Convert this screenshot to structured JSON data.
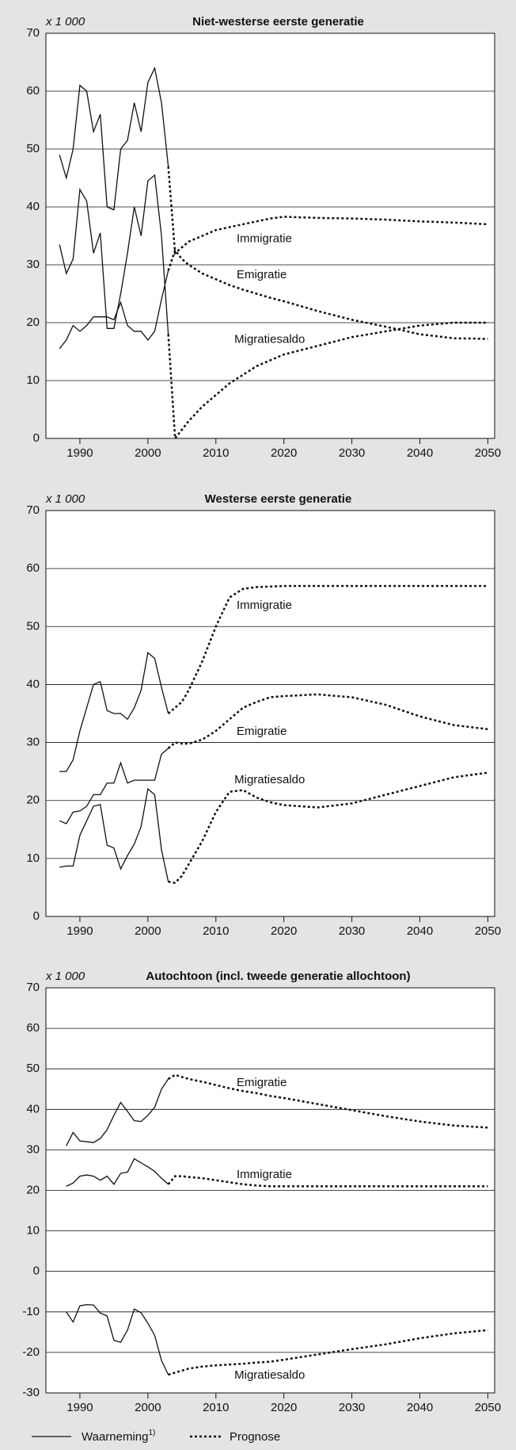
{
  "chart_data": [
    {
      "type": "line",
      "title": "Niet-westerse eerste generatie",
      "unit": "x 1 000",
      "xlim": [
        1985,
        2051
      ],
      "xticks": [
        1990,
        2000,
        2010,
        2020,
        2030,
        2040,
        2050
      ],
      "ylim": [
        0,
        70
      ],
      "yticks": [
        0,
        10,
        20,
        30,
        40,
        50,
        60,
        70
      ],
      "grid": true,
      "x_observed": [
        1987,
        1988,
        1989,
        1990,
        1991,
        1992,
        1993,
        1994,
        1995,
        1996,
        1997,
        1998,
        1999,
        2000,
        2001,
        2002,
        2003
      ],
      "x_forecast": [
        2003,
        2004,
        2005,
        2006,
        2008,
        2010,
        2012,
        2014,
        2016,
        2018,
        2020,
        2025,
        2030,
        2035,
        2040,
        2045,
        2050
      ],
      "series": [
        {
          "name": "Immigratie",
          "observed": [
            49,
            45,
            50,
            61,
            60,
            53,
            56,
            40,
            39.5,
            50,
            51.5,
            58,
            53,
            61.5,
            64,
            58,
            47
          ],
          "forecast": [
            47,
            32,
            33,
            34,
            35,
            36,
            36.5,
            37,
            37.5,
            38,
            38.3,
            38.1,
            38,
            37.8,
            37.5,
            37.3,
            37
          ]
        },
        {
          "name": "Emigratie",
          "observed": [
            15.5,
            17,
            19.5,
            18.5,
            19.5,
            21,
            21,
            21,
            20.5,
            23.5,
            19.5,
            18.5,
            18.5,
            17,
            18.5,
            24,
            29
          ],
          "forecast": [
            29,
            32.5,
            31,
            30,
            28.5,
            27.5,
            26.5,
            25.7,
            25,
            24.3,
            23.7,
            22,
            20.5,
            19.3,
            18,
            17.3,
            17.2
          ]
        },
        {
          "name": "Migratiesaldo",
          "observed": [
            33.5,
            28.5,
            31,
            43,
            41,
            32,
            35.5,
            19,
            19,
            25,
            32,
            40,
            35,
            44.5,
            45.5,
            35,
            18
          ],
          "forecast": [
            18,
            0,
            1.5,
            3,
            5.5,
            7.5,
            9.5,
            11,
            12.5,
            13.5,
            14.5,
            16,
            17.5,
            18.5,
            19.5,
            20,
            20
          ]
        }
      ]
    },
    {
      "type": "line",
      "title": "Westerse eerste generatie",
      "unit": "x 1 000",
      "xlim": [
        1985,
        2051
      ],
      "xticks": [
        1990,
        2000,
        2010,
        2020,
        2030,
        2040,
        2050
      ],
      "ylim": [
        0,
        70
      ],
      "yticks": [
        0,
        10,
        20,
        30,
        40,
        50,
        60,
        70
      ],
      "grid": true,
      "x_observed": [
        1987,
        1988,
        1989,
        1990,
        1991,
        1992,
        1993,
        1994,
        1995,
        1996,
        1997,
        1998,
        1999,
        2000,
        2001,
        2002,
        2003
      ],
      "x_forecast": [
        2003,
        2004,
        2005,
        2006,
        2008,
        2010,
        2012,
        2014,
        2016,
        2018,
        2020,
        2025,
        2030,
        2035,
        2040,
        2045,
        2050
      ],
      "series": [
        {
          "name": "Immigratie",
          "observed": [
            25,
            25,
            27,
            32,
            36,
            40,
            40.5,
            35.5,
            35,
            35,
            34,
            36,
            39,
            45.5,
            44.5,
            39.5,
            35
          ],
          "forecast": [
            35,
            36,
            37,
            39,
            44,
            50,
            55,
            56.5,
            56.8,
            56.9,
            57,
            57,
            57,
            57,
            57,
            57,
            57
          ]
        },
        {
          "name": "Emigratie",
          "observed": [
            16.5,
            16,
            18,
            18.2,
            19,
            21,
            21,
            23,
            23,
            26.5,
            23,
            23.5,
            23.5,
            23.5,
            23.5,
            28,
            29
          ],
          "forecast": [
            29,
            30,
            29.8,
            29.8,
            30.5,
            32,
            34,
            36,
            37,
            37.8,
            38,
            38.3,
            37.8,
            36.5,
            34.5,
            33,
            32.3
          ]
        },
        {
          "name": "Migratiesaldo",
          "observed": [
            8.5,
            8.7,
            8.7,
            14,
            16.5,
            19,
            19.3,
            12.3,
            11.8,
            8.2,
            10.5,
            12.5,
            15.5,
            22,
            21,
            11.5,
            6
          ],
          "forecast": [
            6,
            5.8,
            7,
            9,
            13,
            18,
            21.5,
            21.8,
            20.5,
            19.7,
            19.2,
            18.8,
            19.5,
            21,
            22.5,
            24,
            24.8
          ]
        }
      ]
    },
    {
      "type": "line",
      "title": "Autochtoon (incl. tweede generatie allochtoon)",
      "unit": "x 1 000",
      "xlim": [
        1985,
        2051
      ],
      "xticks": [
        1990,
        2000,
        2010,
        2020,
        2030,
        2040,
        2050
      ],
      "ylim": [
        -30,
        70
      ],
      "yticks": [
        -30,
        -20,
        -10,
        0,
        10,
        20,
        30,
        40,
        50,
        60,
        70
      ],
      "grid": true,
      "x_observed": [
        1988,
        1989,
        1990,
        1991,
        1992,
        1993,
        1994,
        1995,
        1996,
        1997,
        1998,
        1999,
        2000,
        2001,
        2002,
        2003
      ],
      "x_forecast": [
        2003,
        2004,
        2005,
        2006,
        2008,
        2010,
        2012,
        2014,
        2016,
        2018,
        2020,
        2025,
        2030,
        2035,
        2040,
        2045,
        2050
      ],
      "series": [
        {
          "name": "Emigratie",
          "observed": [
            31,
            34.3,
            32.2,
            32,
            31.8,
            32.8,
            35,
            38.5,
            41.7,
            39.5,
            37.2,
            37,
            38.5,
            40.5,
            45,
            47.5
          ],
          "forecast": [
            47.5,
            48.5,
            48,
            47.5,
            46.8,
            46,
            45.2,
            44.5,
            44,
            43.3,
            42.8,
            41.3,
            39.8,
            38.3,
            37,
            36,
            35.5
          ]
        },
        {
          "name": "Immigratie",
          "observed": [
            21,
            21.8,
            23.5,
            23.8,
            23.5,
            22.5,
            23.5,
            21.5,
            24.2,
            24.5,
            27.8,
            26.8,
            25.8,
            24.7,
            23,
            21.5
          ],
          "forecast": [
            21.5,
            23.5,
            23.5,
            23.3,
            23,
            22.5,
            22,
            21.5,
            21.2,
            21,
            21,
            21,
            21,
            21,
            21,
            21,
            21
          ]
        },
        {
          "name": "Migratiesaldo",
          "observed": [
            -10,
            -12.5,
            -8.5,
            -8.2,
            -8.3,
            -10.3,
            -11,
            -17,
            -17.5,
            -14.5,
            -9.3,
            -10.2,
            -12.8,
            -15.8,
            -22,
            -25.5
          ],
          "forecast": [
            -25.5,
            -25,
            -24.5,
            -24,
            -23.5,
            -23.2,
            -23,
            -22.8,
            -22.5,
            -22.3,
            -21.8,
            -20.5,
            -19.2,
            -18,
            -16.5,
            -15.3,
            -14.5
          ]
        }
      ]
    }
  ],
  "legend": [
    {
      "label": "Waarneming",
      "note": "1)",
      "style": "solid"
    },
    {
      "label": "Prognose",
      "style": "dotted"
    }
  ]
}
